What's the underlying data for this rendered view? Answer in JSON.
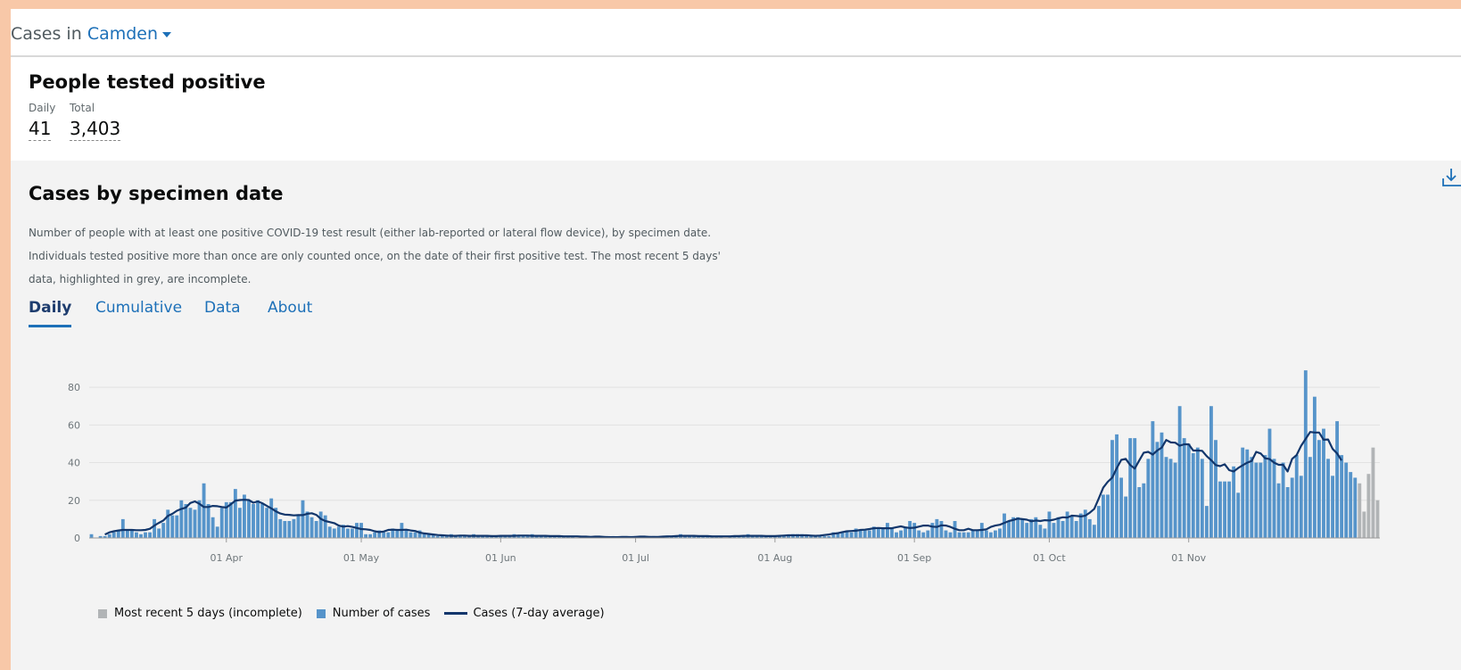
{
  "header": {
    "prefix": "Cases in",
    "area": "Camden"
  },
  "headline": {
    "title": "People tested positive",
    "daily_label": "Daily",
    "daily_value": "41",
    "total_label": "Total",
    "total_value": "3,403"
  },
  "card": {
    "title": "Cases by specimen date",
    "description": "Number of people with at least one positive COVID-19 test result (either lab-reported or lateral flow device), by specimen date. Individuals tested positive more than once are only counted once, on the date of their first positive test. The most recent 5 days' data, highlighted in grey, are incomplete.",
    "tabs": [
      "Daily",
      "Cumulative",
      "Data",
      "About"
    ],
    "active_tab": "Daily",
    "download_icon": "download-icon"
  },
  "colors": {
    "bar": "#5694ca",
    "incomplete_bar": "#b1b4b6",
    "line": "#12366b",
    "link": "#1d70b8"
  },
  "chart_data": {
    "type": "bar",
    "x_start_date": "2020-03-02",
    "x_end_date": "2020-11-21",
    "ylim": [
      0,
      90
    ],
    "y_ticks": [
      0,
      20,
      40,
      60,
      80
    ],
    "x_tick_labels": [
      {
        "date": "2020-04-01",
        "label": "01 Apr"
      },
      {
        "date": "2020-05-01",
        "label": "01 May"
      },
      {
        "date": "2020-06-01",
        "label": "01 Jun"
      },
      {
        "date": "2020-07-01",
        "label": "01 Jul"
      },
      {
        "date": "2020-08-01",
        "label": "01 Aug"
      },
      {
        "date": "2020-09-01",
        "label": "01 Sep"
      },
      {
        "date": "2020-10-01",
        "label": "01 Oct"
      },
      {
        "date": "2020-11-01",
        "label": "01 Nov"
      }
    ],
    "grid": "horizontal",
    "legend_position": "bottom-left",
    "series": [
      {
        "name": "Number of cases",
        "kind": "bar",
        "values": [
          2,
          0,
          1,
          1,
          2,
          3,
          4,
          10,
          4,
          4,
          3,
          2,
          3,
          3,
          10,
          5,
          8,
          15,
          12,
          12,
          20,
          18,
          16,
          15,
          20,
          29,
          18,
          11,
          6,
          16,
          19,
          19,
          26,
          16,
          23,
          20,
          18,
          20,
          18,
          16,
          21,
          16,
          10,
          9,
          9,
          10,
          12,
          20,
          14,
          11,
          9,
          14,
          12,
          6,
          5,
          6,
          7,
          5,
          5,
          8,
          8,
          2,
          2,
          3,
          4,
          3,
          3,
          5,
          4,
          8,
          4,
          3,
          3,
          4,
          2,
          2,
          2,
          1,
          1,
          1,
          2,
          1,
          1,
          1,
          1,
          2,
          1,
          1,
          1,
          1,
          1,
          1,
          1,
          1,
          2,
          1,
          1,
          1,
          2,
          1,
          1,
          1,
          1,
          1,
          1,
          1,
          1,
          1,
          0,
          1,
          1,
          1,
          0,
          1,
          0,
          1,
          1,
          0,
          0,
          0,
          1,
          1,
          1,
          0,
          1,
          1,
          0,
          0,
          1,
          1,
          1,
          2,
          1,
          1,
          1,
          1,
          1,
          1,
          1,
          1,
          1,
          0,
          1,
          1,
          1,
          1,
          2,
          1,
          1,
          1,
          1,
          1,
          1,
          1,
          1,
          1,
          2,
          2,
          2,
          1,
          1,
          1,
          1,
          1,
          1,
          3,
          3,
          3,
          4,
          3,
          5,
          4,
          4,
          4,
          6,
          5,
          5,
          8,
          5,
          3,
          4,
          6,
          9,
          8,
          4,
          3,
          4,
          8,
          10,
          9,
          4,
          3,
          9,
          3,
          3,
          3,
          4,
          4,
          8,
          4,
          3,
          4,
          5,
          13,
          9,
          11,
          11,
          10,
          8,
          10,
          11,
          7,
          5,
          14,
          8,
          11,
          9,
          14,
          12,
          9,
          13,
          15,
          10,
          7,
          17,
          23,
          23,
          52,
          55,
          32,
          22,
          53,
          53,
          27,
          29,
          42,
          62,
          51,
          56,
          43,
          42,
          40,
          70,
          53,
          50,
          45,
          48,
          42,
          17,
          70,
          52,
          30,
          30,
          30,
          38,
          24,
          48,
          47,
          43,
          40,
          40,
          44,
          58,
          42,
          29,
          40,
          27,
          32,
          44,
          33,
          89,
          43,
          75,
          52,
          58,
          42,
          33,
          62,
          44,
          40,
          35,
          32,
          29,
          14,
          34,
          48,
          20
        ],
        "color": "#5694ca"
      },
      {
        "name": "Most recent 5 days (incomplete)",
        "kind": "bar",
        "last_n": 5,
        "color": "#b1b4b6"
      },
      {
        "name": "Cases (7-day average)",
        "kind": "line",
        "color": "#12366b"
      }
    ]
  }
}
